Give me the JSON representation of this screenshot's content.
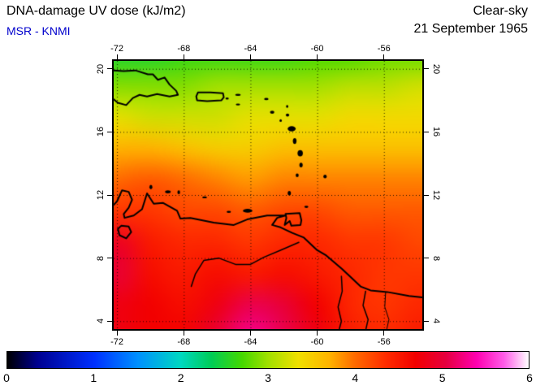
{
  "header": {
    "title": "DNA-damage UV dose (kJ/m2)",
    "source_label": "MSR - KNMI",
    "condition": "Clear-sky",
    "date": "21 September 1965"
  },
  "colors": {
    "source_label": "#0000cc",
    "title_text": "#000000",
    "background": "#ffffff",
    "coastline": "#000000"
  },
  "chart_data": {
    "type": "heatmap",
    "title": "DNA-damage UV dose (kJ/m2)",
    "subtitle": "MSR - KNMI",
    "condition": "Clear-sky",
    "date": "21 September 1965",
    "units": "kJ/m2",
    "axes": {
      "lon_min": -72.2,
      "lon_max": -53.7,
      "lat_min": 3.5,
      "lat_max": 20.5,
      "lon_ticks": [
        -72,
        -68,
        -64,
        -60,
        -56
      ],
      "lat_ticks": [
        20,
        16,
        12,
        8,
        4
      ],
      "grid": "dotted"
    },
    "grid": {
      "lons": [
        -74,
        -72,
        -70,
        -68,
        -66,
        -64,
        -62,
        -60,
        -58,
        -56,
        -54
      ],
      "lats": [
        21,
        19,
        17,
        15,
        13,
        11,
        9,
        7,
        5,
        3
      ],
      "values": [
        [
          2.5,
          2.5,
          2.5,
          2.6,
          2.6,
          2.6,
          2.6,
          2.7,
          2.7,
          2.8,
          2.8
        ],
        [
          2.9,
          2.9,
          2.9,
          2.9,
          3.0,
          3.0,
          3.0,
          3.0,
          3.1,
          3.1,
          3.2
        ],
        [
          3.3,
          3.3,
          3.2,
          3.2,
          3.2,
          3.3,
          3.3,
          3.3,
          3.4,
          3.4,
          3.4
        ],
        [
          3.6,
          3.7,
          3.7,
          3.6,
          3.5,
          3.5,
          3.6,
          3.6,
          3.6,
          3.6,
          3.6
        ],
        [
          3.9,
          4.0,
          4.1,
          4.0,
          3.9,
          3.8,
          3.9,
          3.9,
          3.9,
          3.9,
          3.9
        ],
        [
          4.2,
          4.3,
          4.3,
          4.2,
          4.2,
          4.1,
          4.2,
          4.2,
          4.1,
          4.1,
          4.1
        ],
        [
          4.6,
          4.9,
          4.5,
          4.4,
          4.4,
          4.3,
          4.4,
          4.4,
          4.3,
          4.3,
          4.2
        ],
        [
          4.7,
          5.0,
          4.6,
          4.5,
          4.6,
          4.5,
          4.6,
          4.5,
          4.4,
          4.3,
          4.3
        ],
        [
          4.8,
          4.8,
          4.7,
          4.6,
          4.8,
          5.1,
          5.0,
          4.7,
          4.4,
          4.3,
          4.4
        ],
        [
          4.8,
          4.8,
          4.7,
          4.7,
          5.0,
          5.3,
          5.1,
          4.8,
          4.5,
          4.4,
          4.5
        ]
      ]
    },
    "colormap": [
      {
        "v": 0.0,
        "c": "#000000"
      },
      {
        "v": 0.35,
        "c": "#000090"
      },
      {
        "v": 1.0,
        "c": "#0030ff"
      },
      {
        "v": 1.5,
        "c": "#0090ff"
      },
      {
        "v": 2.0,
        "c": "#00d8c0"
      },
      {
        "v": 2.35,
        "c": "#00cc55"
      },
      {
        "v": 2.7,
        "c": "#44d800"
      },
      {
        "v": 3.0,
        "c": "#a0e000"
      },
      {
        "v": 3.35,
        "c": "#f0e000"
      },
      {
        "v": 3.7,
        "c": "#ffb400"
      },
      {
        "v": 4.0,
        "c": "#ff6a00"
      },
      {
        "v": 4.35,
        "c": "#ff2d00"
      },
      {
        "v": 4.7,
        "c": "#f20000"
      },
      {
        "v": 5.05,
        "c": "#e60040"
      },
      {
        "v": 5.4,
        "c": "#ff00b0"
      },
      {
        "v": 5.72,
        "c": "#ff5ce8"
      },
      {
        "v": 6.0,
        "c": "#ffffff"
      }
    ],
    "colorbar": {
      "min": 0,
      "max": 6,
      "tick_labels": [
        "0",
        "1",
        "2",
        "3",
        "4",
        "5",
        "6"
      ]
    },
    "coastlines": [
      {
        "name": "hispaniola",
        "closed": true,
        "width": 2,
        "points": [
          [
            -72.35,
            19.9
          ],
          [
            -71.6,
            19.85
          ],
          [
            -70.9,
            19.9
          ],
          [
            -70.15,
            19.65
          ],
          [
            -69.85,
            19.65
          ],
          [
            -69.55,
            19.3
          ],
          [
            -69.15,
            19.45
          ],
          [
            -68.85,
            19.0
          ],
          [
            -68.45,
            18.6
          ],
          [
            -68.35,
            18.35
          ],
          [
            -68.85,
            18.25
          ],
          [
            -69.6,
            18.4
          ],
          [
            -70.2,
            18.25
          ],
          [
            -70.65,
            18.35
          ],
          [
            -71.05,
            18.15
          ],
          [
            -71.45,
            17.7
          ],
          [
            -71.95,
            17.85
          ],
          [
            -72.35,
            18.2
          ]
        ]
      },
      {
        "name": "puerto-rico",
        "closed": true,
        "width": 2,
        "points": [
          [
            -67.15,
            18.5
          ],
          [
            -66.4,
            18.5
          ],
          [
            -65.65,
            18.45
          ],
          [
            -65.6,
            18.2
          ],
          [
            -65.75,
            18.0
          ],
          [
            -66.6,
            17.95
          ],
          [
            -67.2,
            18.0
          ],
          [
            -67.25,
            18.25
          ]
        ]
      },
      {
        "name": "trinidad",
        "closed": true,
        "width": 2,
        "points": [
          [
            -61.9,
            10.8
          ],
          [
            -61.05,
            10.85
          ],
          [
            -60.95,
            10.4
          ],
          [
            -61.0,
            10.1
          ],
          [
            -61.55,
            10.05
          ],
          [
            -61.65,
            10.35
          ],
          [
            -61.95,
            10.1
          ],
          [
            -61.85,
            10.55
          ]
        ]
      },
      {
        "name": "south-america-coast",
        "closed": false,
        "width": 2,
        "points": [
          [
            -72.4,
            11.15
          ],
          [
            -72.0,
            11.6
          ],
          [
            -71.7,
            12.3
          ],
          [
            -71.3,
            12.2
          ],
          [
            -71.1,
            11.7
          ],
          [
            -71.3,
            11.2
          ],
          [
            -71.6,
            10.8
          ],
          [
            -71.55,
            10.55
          ],
          [
            -71.0,
            10.7
          ],
          [
            -70.5,
            11.1
          ],
          [
            -70.2,
            12.1
          ],
          [
            -69.8,
            11.45
          ],
          [
            -69.25,
            11.5
          ],
          [
            -68.4,
            11.0
          ],
          [
            -68.2,
            10.5
          ],
          [
            -67.6,
            10.55
          ],
          [
            -66.2,
            10.25
          ],
          [
            -65.0,
            10.1
          ],
          [
            -64.2,
            10.45
          ],
          [
            -63.0,
            10.7
          ],
          [
            -61.9,
            10.7
          ],
          [
            -62.4,
            10.55
          ],
          [
            -62.7,
            10.1
          ],
          [
            -62.2,
            9.95
          ],
          [
            -61.5,
            9.6
          ],
          [
            -60.8,
            9.3
          ],
          [
            -60.0,
            8.5
          ],
          [
            -59.5,
            8.2
          ],
          [
            -58.5,
            7.3
          ],
          [
            -57.4,
            6.2
          ],
          [
            -56.8,
            5.95
          ],
          [
            -55.8,
            5.85
          ],
          [
            -54.5,
            5.6
          ],
          [
            -53.6,
            5.5
          ]
        ]
      },
      {
        "name": "lake-maracaibo",
        "closed": true,
        "width": 2,
        "points": [
          [
            -71.75,
            10.05
          ],
          [
            -71.3,
            10.0
          ],
          [
            -71.15,
            9.65
          ],
          [
            -71.45,
            9.25
          ],
          [
            -71.85,
            9.45
          ],
          [
            -71.95,
            9.85
          ]
        ]
      },
      {
        "name": "orinoco-river",
        "closed": false,
        "width": 1.5,
        "points": [
          [
            -61.1,
            9.0
          ],
          [
            -62.2,
            8.5
          ],
          [
            -63.2,
            8.05
          ],
          [
            -64.0,
            7.6
          ],
          [
            -64.9,
            7.6
          ],
          [
            -65.9,
            8.0
          ],
          [
            -66.8,
            7.85
          ],
          [
            -67.3,
            7.0
          ],
          [
            -67.55,
            6.2
          ]
        ]
      },
      {
        "name": "essequibo-river",
        "closed": false,
        "width": 1.5,
        "points": [
          [
            -58.55,
            6.85
          ],
          [
            -58.5,
            5.9
          ],
          [
            -58.75,
            4.9
          ],
          [
            -58.55,
            4.0
          ],
          [
            -58.7,
            3.4
          ]
        ]
      },
      {
        "name": "courantyne-river",
        "closed": false,
        "width": 1.5,
        "points": [
          [
            -57.1,
            5.9
          ],
          [
            -57.25,
            5.0
          ],
          [
            -56.95,
            4.1
          ],
          [
            -57.1,
            3.4
          ]
        ]
      },
      {
        "name": "suriname-river",
        "closed": false,
        "width": 1,
        "points": [
          [
            -55.9,
            5.8
          ],
          [
            -55.95,
            4.9
          ],
          [
            -55.7,
            4.1
          ],
          [
            -55.85,
            3.4
          ]
        ]
      }
    ],
    "islands": [
      {
        "name": "aruba",
        "lon": -69.97,
        "lat": 12.5,
        "rx": 0.09,
        "ry": 0.14
      },
      {
        "name": "curacao",
        "lon": -68.95,
        "lat": 12.2,
        "rx": 0.17,
        "ry": 0.1
      },
      {
        "name": "bonaire",
        "lon": -68.3,
        "lat": 12.17,
        "rx": 0.08,
        "ry": 0.12
      },
      {
        "name": "los-roques",
        "lon": -66.75,
        "lat": 11.85,
        "rx": 0.14,
        "ry": 0.06
      },
      {
        "name": "la-tortuga",
        "lon": -65.3,
        "lat": 10.93,
        "rx": 0.13,
        "ry": 0.06
      },
      {
        "name": "margarita",
        "lon": -64.17,
        "lat": 11.0,
        "rx": 0.28,
        "ry": 0.12
      },
      {
        "name": "grenada",
        "lon": -61.67,
        "lat": 12.12,
        "rx": 0.1,
        "ry": 0.14
      },
      {
        "name": "st-vincent",
        "lon": -61.2,
        "lat": 13.25,
        "rx": 0.09,
        "ry": 0.12
      },
      {
        "name": "barbados",
        "lon": -59.53,
        "lat": 13.17,
        "rx": 0.1,
        "ry": 0.12
      },
      {
        "name": "st-lucia",
        "lon": -60.97,
        "lat": 13.9,
        "rx": 0.1,
        "ry": 0.15
      },
      {
        "name": "martinique",
        "lon": -61.02,
        "lat": 14.65,
        "rx": 0.16,
        "ry": 0.2
      },
      {
        "name": "dominica",
        "lon": -61.35,
        "lat": 15.42,
        "rx": 0.11,
        "ry": 0.19
      },
      {
        "name": "guadeloupe",
        "lon": -61.53,
        "lat": 16.2,
        "rx": 0.24,
        "ry": 0.17
      },
      {
        "name": "montserrat",
        "lon": -62.19,
        "lat": 16.72,
        "rx": 0.07,
        "ry": 0.08
      },
      {
        "name": "antigua",
        "lon": -61.78,
        "lat": 17.07,
        "rx": 0.1,
        "ry": 0.1
      },
      {
        "name": "barbuda",
        "lon": -61.8,
        "lat": 17.62,
        "rx": 0.07,
        "ry": 0.09
      },
      {
        "name": "st-kitts-nevis",
        "lon": -62.7,
        "lat": 17.25,
        "rx": 0.13,
        "ry": 0.1
      },
      {
        "name": "anguilla-st-martin",
        "lon": -63.05,
        "lat": 18.08,
        "rx": 0.13,
        "ry": 0.07
      },
      {
        "name": "virgin-islands",
        "lon": -64.75,
        "lat": 18.35,
        "rx": 0.16,
        "ry": 0.06
      },
      {
        "name": "st-croix",
        "lon": -64.75,
        "lat": 17.74,
        "rx": 0.13,
        "ry": 0.05
      },
      {
        "name": "vieques",
        "lon": -65.4,
        "lat": 18.12,
        "rx": 0.1,
        "ry": 0.05
      },
      {
        "name": "tobago",
        "lon": -60.65,
        "lat": 11.25,
        "rx": 0.12,
        "ry": 0.07
      }
    ]
  }
}
